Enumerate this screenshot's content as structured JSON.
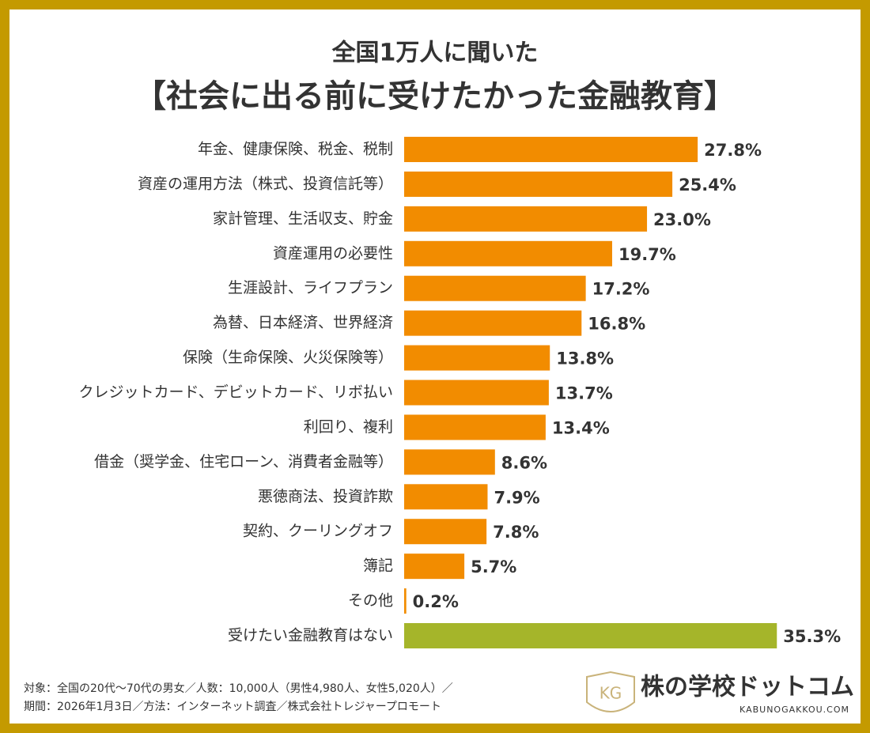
{
  "chart_data": {
    "type": "bar",
    "orientation": "horizontal",
    "subtitle": "全国1万人に聞いた",
    "title": "【社会に出る前に受けたかった金融教育】",
    "categories": [
      "年金、健康保険、税金、税制",
      "資産の運用方法（株式、投資信託等）",
      "家計管理、生活収支、貯金",
      "資産運用の必要性",
      "生涯設計、ライフプラン",
      "為替、日本経済、世界経済",
      "保険（生命保険、火災保険等）",
      "クレジットカード、デビットカード、リボ払い",
      "利回り、複利",
      "借金（奨学金、住宅ローン、消費者金融等）",
      "悪徳商法、投資詐欺",
      "契約、クーリングオフ",
      "簿記",
      "その他",
      "受けたい金融教育はない"
    ],
    "values": [
      27.8,
      25.4,
      23.0,
      19.7,
      17.2,
      16.8,
      13.8,
      13.7,
      13.4,
      8.6,
      7.9,
      7.8,
      5.7,
      0.2,
      35.3
    ],
    "value_labels": [
      "27.8%",
      "25.4%",
      "23.0%",
      "19.7%",
      "17.2%",
      "16.8%",
      "13.8%",
      "13.7%",
      "13.4%",
      "8.6%",
      "7.9%",
      "7.8%",
      "5.7%",
      "0.2%",
      "35.3%"
    ],
    "colors": [
      "#f28c00",
      "#f28c00",
      "#f28c00",
      "#f28c00",
      "#f28c00",
      "#f28c00",
      "#f28c00",
      "#f28c00",
      "#f28c00",
      "#f28c00",
      "#f28c00",
      "#f28c00",
      "#f28c00",
      "#f28c00",
      "#a5b52a"
    ]
  },
  "footer": {
    "lines": [
      "対象：全国の20代〜70代の男女／人数：10,000人（男性4,980人、女性5,020人）／",
      "期間：2026年1月3日／方法：インターネット調査／株式会社トレジャープロモート"
    ]
  },
  "logo": {
    "emblem": "KG",
    "name": "株の学校ドットコム",
    "url": "KABUNOGAKKOU.COM"
  }
}
